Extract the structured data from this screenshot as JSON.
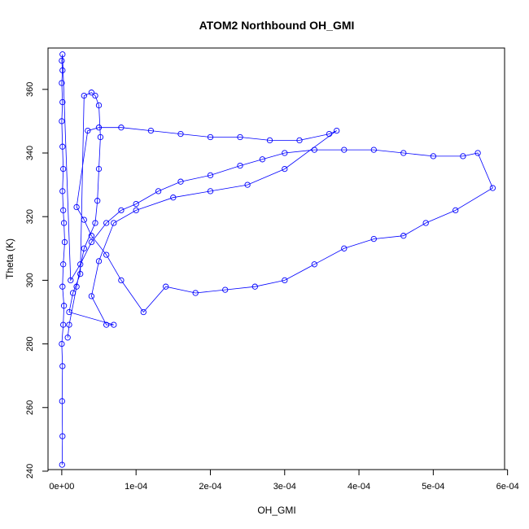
{
  "chart_data": {
    "type": "line",
    "title": "ATOM2 Northbound OH_GMI",
    "xlabel": "OH_GMI",
    "ylabel": "Theta (K)",
    "xlim": [
      -1.85e-05,
      0.000596
    ],
    "ylim": [
      240.5,
      373
    ],
    "x_ticks": [
      0,
      0.0001,
      0.0002,
      0.0003,
      0.0004,
      0.0005,
      0.0006
    ],
    "x_tick_labels": [
      "0e+00",
      "1e-04",
      "2e-04",
      "3e-04",
      "4e-04",
      "5e-04",
      "6e-04"
    ],
    "y_ticks": [
      240,
      260,
      280,
      300,
      320,
      340,
      360
    ],
    "y_tick_labels": [
      "240",
      "260",
      "280",
      "300",
      "320",
      "340",
      "360"
    ],
    "color": "#0000ff",
    "marker": "open-circle",
    "grid": false,
    "series": [
      {
        "values": [
          [
            5e-07,
            242
          ],
          [
            1e-06,
            251
          ],
          [
            5e-07,
            262
          ],
          [
            1e-06,
            273
          ],
          [
            0.0,
            280
          ],
          [
            2e-06,
            286
          ],
          [
            3e-06,
            292
          ],
          [
            1e-06,
            298
          ],
          [
            2e-06,
            305
          ],
          [
            4e-06,
            312
          ],
          [
            3e-06,
            318
          ],
          [
            2e-06,
            322
          ],
          [
            1e-06,
            328
          ],
          [
            2e-06,
            335
          ],
          [
            1e-06,
            342
          ],
          [
            0.0,
            350
          ],
          [
            1e-06,
            356
          ],
          [
            0.0,
            362
          ],
          [
            1e-06,
            366
          ],
          [
            0.0,
            369
          ],
          [
            1e-06,
            371
          ],
          [
            1.2e-05,
            300
          ],
          [
            2.5e-05,
            305
          ],
          [
            4e-05,
            312
          ],
          [
            6e-05,
            318
          ],
          [
            8e-05,
            322
          ],
          [
            0.0001,
            324
          ],
          [
            0.00013,
            328
          ],
          [
            0.00016,
            331
          ],
          [
            0.0002,
            333
          ],
          [
            0.00024,
            336
          ],
          [
            0.00027,
            338
          ],
          [
            0.0003,
            340
          ],
          [
            0.00034,
            341
          ],
          [
            0.00038,
            341
          ],
          [
            0.00042,
            341
          ],
          [
            0.00046,
            340
          ],
          [
            0.0005,
            339
          ],
          [
            0.00054,
            339
          ],
          [
            0.00056,
            340
          ],
          [
            0.00058,
            329
          ],
          [
            0.00053,
            322
          ],
          [
            0.00049,
            318
          ],
          [
            0.00046,
            314
          ],
          [
            0.00042,
            313
          ],
          [
            0.00038,
            310
          ],
          [
            0.00034,
            305
          ],
          [
            0.0003,
            300
          ],
          [
            0.00026,
            298
          ],
          [
            0.00022,
            297
          ],
          [
            0.00018,
            296
          ],
          [
            0.00014,
            298
          ],
          [
            0.00011,
            290
          ],
          [
            8e-05,
            300
          ],
          [
            6e-05,
            308
          ],
          [
            4e-05,
            314
          ],
          [
            3e-05,
            319
          ],
          [
            2e-05,
            323
          ],
          [
            3.5e-05,
            347
          ],
          [
            5e-05,
            348
          ],
          [
            8e-05,
            348
          ],
          [
            0.00012,
            347
          ],
          [
            0.00016,
            346
          ],
          [
            0.0002,
            345
          ],
          [
            0.00024,
            345
          ],
          [
            0.00028,
            344
          ],
          [
            0.00032,
            344
          ],
          [
            0.00036,
            346
          ],
          [
            0.00037,
            347
          ],
          [
            0.0003,
            335
          ],
          [
            0.00025,
            330
          ],
          [
            0.0002,
            328
          ],
          [
            0.00015,
            326
          ],
          [
            0.0001,
            322
          ],
          [
            7e-05,
            318
          ],
          [
            5e-05,
            306
          ],
          [
            4e-05,
            295
          ],
          [
            6e-05,
            286
          ],
          [
            7e-05,
            286
          ],
          [
            1e-05,
            290
          ],
          [
            1.5e-05,
            296
          ],
          [
            2.5e-05,
            302
          ],
          [
            3e-05,
            358
          ],
          [
            4e-05,
            359
          ],
          [
            4.5e-05,
            358
          ],
          [
            5e-05,
            355
          ],
          [
            5.2e-05,
            345
          ],
          [
            5e-05,
            335
          ],
          [
            4.8e-05,
            325
          ],
          [
            4.5e-05,
            318
          ],
          [
            3e-05,
            310
          ],
          [
            2e-05,
            298
          ],
          [
            1e-05,
            286
          ],
          [
            8e-06,
            282
          ]
        ]
      }
    ]
  }
}
